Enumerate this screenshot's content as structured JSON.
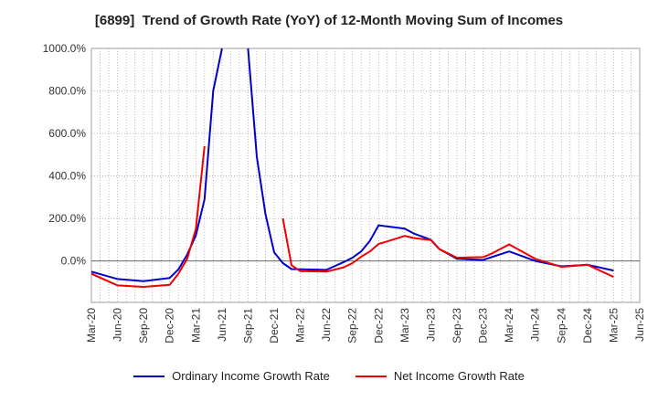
{
  "chart_data": {
    "type": "line",
    "title": "[6899]  Trend of Growth Rate (YoY) of 12-Month Moving Sum of Incomes",
    "y_ticks": [
      "1000.0%",
      "800.0%",
      "600.0%",
      "400.0%",
      "200.0%",
      "0.0%"
    ],
    "y_tick_values": [
      1000,
      800,
      600,
      400,
      200,
      0
    ],
    "x_ticks": [
      "Mar-20",
      "Jun-20",
      "Sep-20",
      "Dec-20",
      "Mar-21",
      "Jun-21",
      "Sep-21",
      "Dec-21",
      "Mar-22",
      "Jun-22",
      "Sep-22",
      "Dec-22",
      "Mar-23",
      "Jun-23",
      "Sep-23",
      "Dec-23",
      "Mar-24",
      "Jun-24",
      "Sep-24",
      "Dec-24",
      "Mar-25",
      "Jun-25"
    ],
    "ylim": [
      -195,
      1000
    ],
    "grid": true,
    "legend_position": "bottom",
    "series": [
      {
        "name": "Ordinary Income Growth Rate",
        "color": "#0000cc",
        "points": [
          [
            "Mar-20",
            -50
          ],
          [
            "Jun-20",
            -85
          ],
          [
            "Sep-20",
            -95
          ],
          [
            "Dec-20",
            -80
          ],
          [
            "Jan-21",
            -40
          ],
          [
            "Feb-21",
            30
          ],
          [
            "Mar-21",
            120
          ],
          [
            "Apr-21",
            290
          ],
          [
            "May-21",
            800
          ],
          [
            "Jun-21",
            1000
          ],
          [
            "Jul-21",
            null
          ],
          [
            "Aug-21",
            null
          ],
          [
            "Sep-21",
            1000
          ],
          [
            "Oct-21",
            490
          ],
          [
            "Nov-21",
            220
          ],
          [
            "Dec-21",
            40
          ],
          [
            "Jan-22",
            -10
          ],
          [
            "Feb-22",
            -38
          ],
          [
            "Jun-22",
            -42
          ],
          [
            "Aug-22",
            -5
          ],
          [
            "Sep-22",
            15
          ],
          [
            "Oct-22",
            45
          ],
          [
            "Nov-22",
            95
          ],
          [
            "Dec-22",
            168
          ],
          [
            "Mar-23",
            152
          ],
          [
            "Apr-23",
            130
          ],
          [
            "Jun-23",
            100
          ],
          [
            "Jul-23",
            55
          ],
          [
            "Sep-23",
            10
          ],
          [
            "Dec-23",
            5
          ],
          [
            "Mar-24",
            45
          ],
          [
            "Jun-24",
            0
          ],
          [
            "Sep-24",
            -25
          ],
          [
            "Dec-24",
            -18
          ],
          [
            "Mar-25",
            -45
          ]
        ]
      },
      {
        "name": "Net Income Growth Rate",
        "color": "#ee0000",
        "points": [
          [
            "Mar-20",
            -60
          ],
          [
            "Jun-20",
            -115
          ],
          [
            "Sep-20",
            -122
          ],
          [
            "Dec-20",
            -112
          ],
          [
            "Jan-21",
            -60
          ],
          [
            "Feb-21",
            10
          ],
          [
            "Mar-21",
            150
          ],
          [
            "Apr-21",
            540
          ],
          [
            "May-21",
            null
          ],
          [
            "Dec-21",
            null
          ],
          [
            "Jan-22",
            200
          ],
          [
            "Feb-22",
            -20
          ],
          [
            "Mar-22",
            -48
          ],
          [
            "Jun-22",
            -50
          ],
          [
            "Aug-22",
            -30
          ],
          [
            "Sep-22",
            -10
          ],
          [
            "Oct-22",
            20
          ],
          [
            "Nov-22",
            45
          ],
          [
            "Dec-22",
            80
          ],
          [
            "Jan-23",
            92
          ],
          [
            "Mar-23",
            118
          ],
          [
            "Apr-23",
            108
          ],
          [
            "Jun-23",
            98
          ],
          [
            "Jul-23",
            55
          ],
          [
            "Sep-23",
            15
          ],
          [
            "Dec-23",
            18
          ],
          [
            "Jan-24",
            35
          ],
          [
            "Mar-24",
            78
          ],
          [
            "Jun-24",
            10
          ],
          [
            "Sep-24",
            -28
          ],
          [
            "Dec-24",
            -18
          ],
          [
            "Mar-25",
            -75
          ]
        ]
      }
    ]
  }
}
